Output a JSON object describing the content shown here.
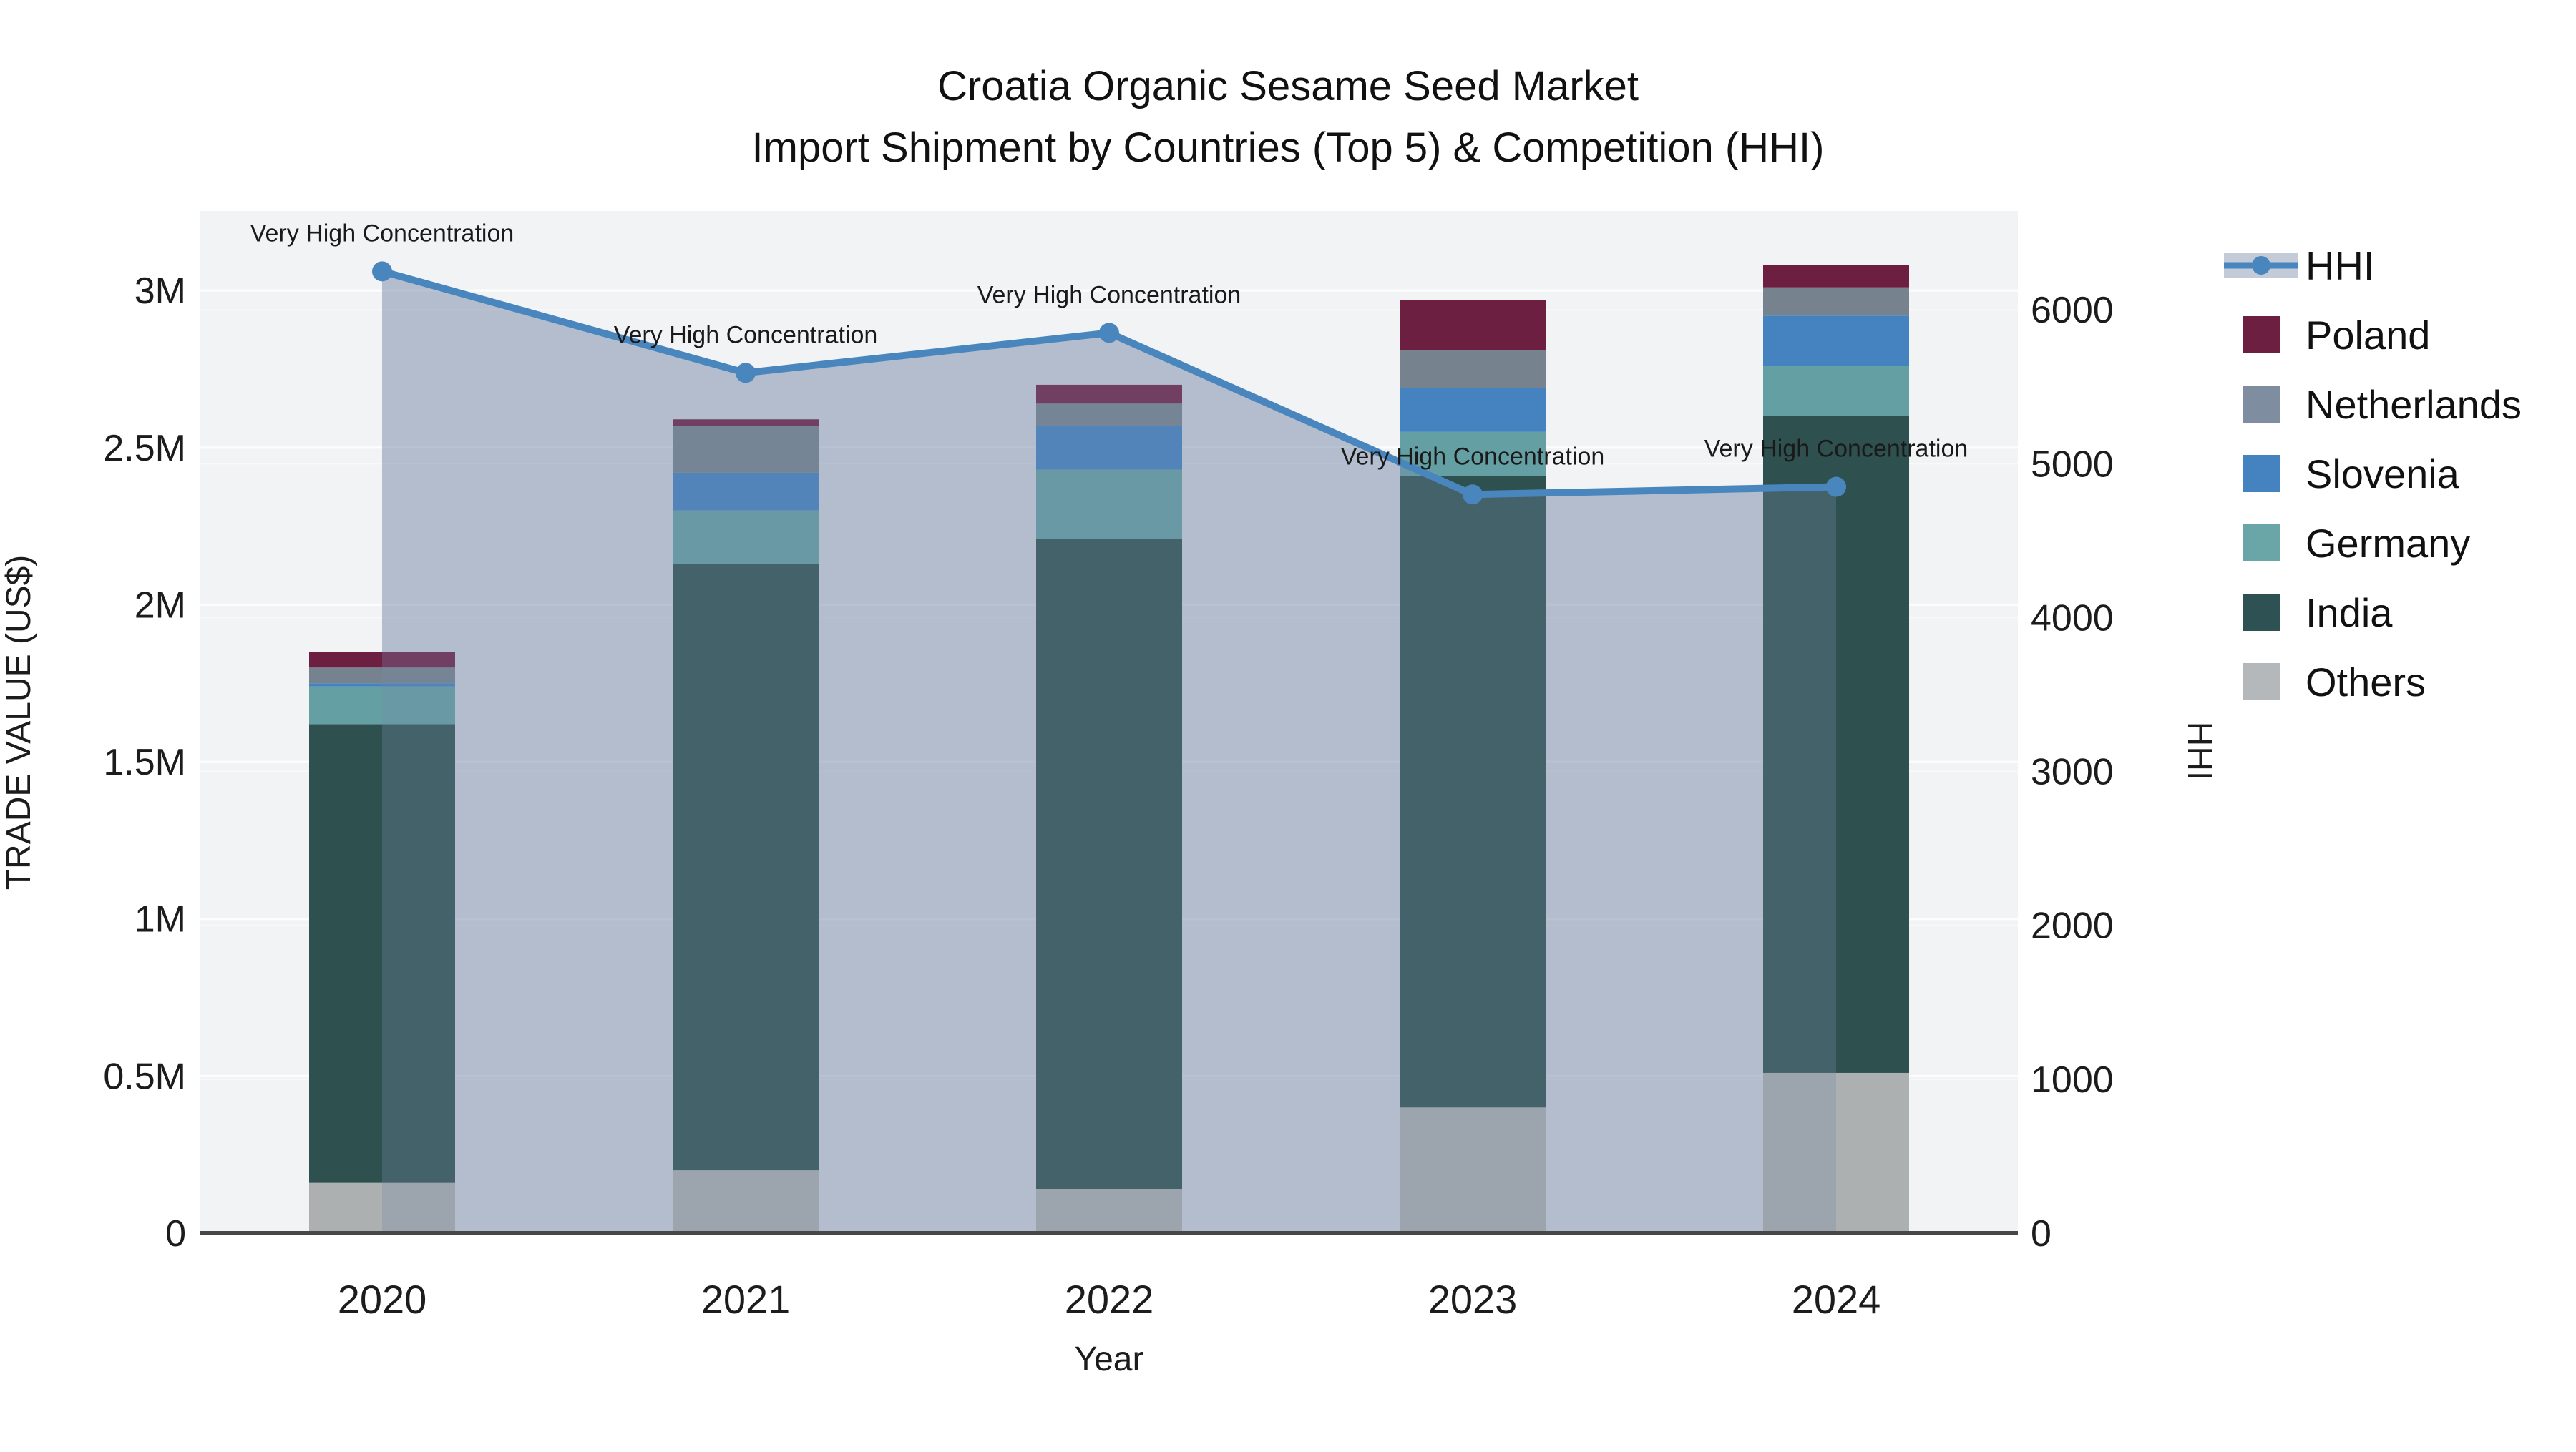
{
  "chart_data": {
    "type": "bar+line",
    "title_line1": "Croatia Organic Sesame Seed Market",
    "title_line2": "Import Shipment by Countries (Top 5) & Competition (HHI)",
    "xlabel": "Year",
    "ylabel_left": "TRADE VALUE (US$)",
    "ylabel_right": "HHI",
    "categories": [
      "2020",
      "2021",
      "2022",
      "2023",
      "2024"
    ],
    "values_unit": "millions of US$",
    "bar_series": [
      {
        "name": "Poland",
        "color": "#6D1F42",
        "values": [
          0.05,
          0.02,
          0.06,
          0.16,
          0.07
        ]
      },
      {
        "name": "Netherlands",
        "color": "#76838F",
        "values": [
          0.05,
          0.15,
          0.07,
          0.12,
          0.09
        ]
      },
      {
        "name": "Slovenia",
        "color": "#4482C0",
        "values": [
          0.01,
          0.12,
          0.14,
          0.14,
          0.16
        ]
      },
      {
        "name": "Germany",
        "color": "#64A0A3",
        "values": [
          0.12,
          0.17,
          0.22,
          0.14,
          0.16
        ]
      },
      {
        "name": "India",
        "color": "#2E5150",
        "values": [
          1.46,
          1.93,
          2.07,
          2.01,
          2.09
        ]
      },
      {
        "name": "Others",
        "color": "#ADB0B1",
        "values": [
          0.16,
          0.2,
          0.14,
          0.4,
          0.51
        ]
      }
    ],
    "stack_bottom_to_top": [
      "Others",
      "India",
      "Germany",
      "Slovenia",
      "Netherlands",
      "Poland"
    ],
    "line_series": {
      "name": "HHI",
      "color": "#4A86BE",
      "area_fill": "rgba(120,140,170,0.30)",
      "values": [
        6250,
        5590,
        5850,
        4800,
        4850
      ]
    },
    "annotations": [
      "Very High Concentration",
      "Very High Concentration",
      "Very High Concentration",
      "Very High Concentration",
      "Very High Concentration"
    ],
    "y_left": {
      "ticks": [
        {
          "label": "0",
          "value": 0
        },
        {
          "label": "0.5M",
          "value": 0.5
        },
        {
          "label": "1M",
          "value": 1
        },
        {
          "label": "1.5M",
          "value": 1.5
        },
        {
          "label": "2M",
          "value": 2
        },
        {
          "label": "2.5M",
          "value": 2.5
        },
        {
          "label": "3M",
          "value": 3
        }
      ],
      "range": [
        0,
        3.253
      ]
    },
    "y_right": {
      "ticks": [
        {
          "label": "0",
          "value": 0
        },
        {
          "label": "1000",
          "value": 1000
        },
        {
          "label": "2000",
          "value": 2000
        },
        {
          "label": "3000",
          "value": 3000
        },
        {
          "label": "4000",
          "value": 4000
        },
        {
          "label": "5000",
          "value": 5000
        },
        {
          "label": "6000",
          "value": 6000
        }
      ],
      "range": [
        0,
        6642
      ]
    },
    "grid": true,
    "legend_position": "right"
  },
  "legend": {
    "items": [
      {
        "label": "HHI",
        "type": "line",
        "color": "#4A86BE",
        "band_color": "#C3CBD8"
      },
      {
        "label": "Poland",
        "type": "swatch",
        "color": "#6D1F42"
      },
      {
        "label": "Netherlands",
        "type": "swatch",
        "color": "#7E8DA0"
      },
      {
        "label": "Slovenia",
        "type": "swatch",
        "color": "#4482C0"
      },
      {
        "label": "Germany",
        "type": "swatch",
        "color": "#6AA6A8"
      },
      {
        "label": "India",
        "type": "swatch",
        "color": "#2E5153"
      },
      {
        "label": "Others",
        "type": "swatch",
        "color": "#B5B8BB"
      }
    ]
  },
  "colors": {
    "plot_background": "#F2F3F4",
    "gridline": "#FFFFFF",
    "axis_line": "#474747"
  }
}
